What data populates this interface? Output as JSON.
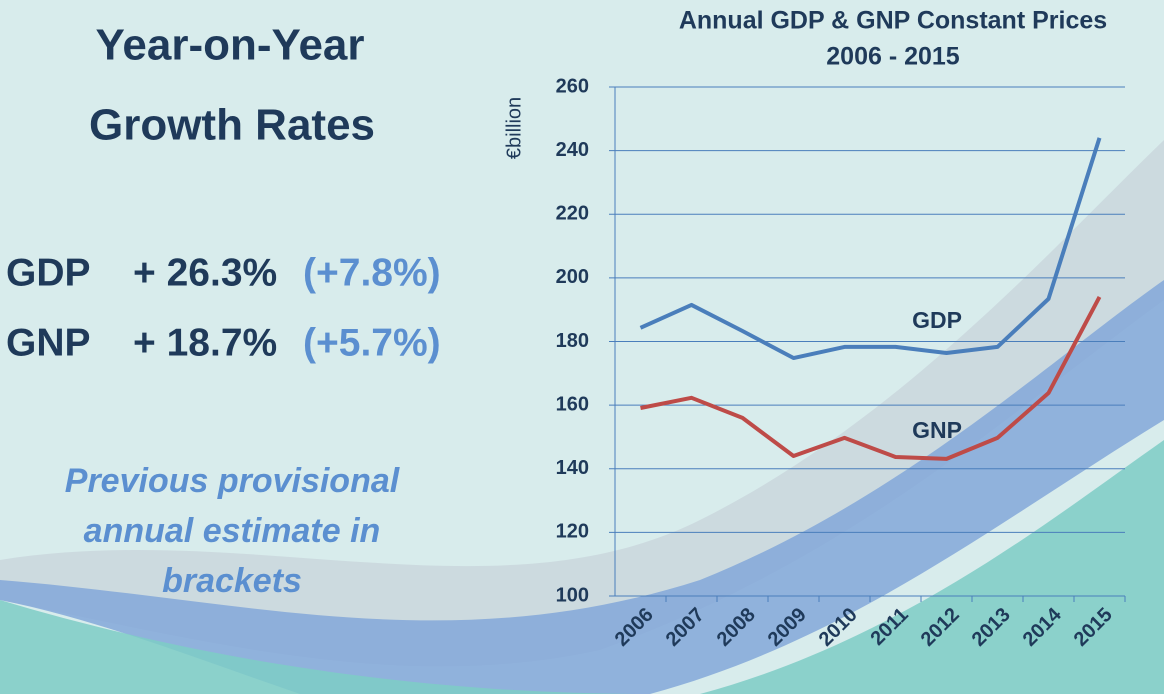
{
  "slide": {
    "title_lines": [
      "Year-on-Year",
      "Growth Rates"
    ],
    "rows": [
      {
        "label": "GDP",
        "value": "+ 26.3%",
        "previous": "(+7.8%)"
      },
      {
        "label": "GNP",
        "value": "+ 18.7%",
        "previous": "(+5.7%)"
      }
    ],
    "note_lines": [
      "Previous provisional",
      "annual estimate in",
      "brackets"
    ]
  },
  "chart_data": {
    "type": "line",
    "title": "Annual GDP & GNP Constant Prices",
    "subtitle": "2006 - 2015",
    "y_label": "€billion",
    "categories": [
      "2006",
      "2007",
      "2008",
      "2009",
      "2010",
      "2011",
      "2012",
      "2013",
      "2014",
      "2015"
    ],
    "series": [
      {
        "name": "GDP",
        "color": "#4a7ebb",
        "values": [
          184.3,
          191.5,
          183.3,
          174.8,
          178.3,
          178.3,
          176.4,
          178.3,
          193.4,
          244
        ]
      },
      {
        "name": "GNP",
        "color": "#be4b48",
        "values": [
          159.1,
          162.3,
          156,
          144,
          149.7,
          143.7,
          143.1,
          149.7,
          163.8,
          194
        ]
      }
    ],
    "ylim": [
      100,
      260
    ],
    "yticks": [
      100,
      120,
      140,
      160,
      180,
      200,
      220,
      240,
      260
    ],
    "grid": true
  }
}
